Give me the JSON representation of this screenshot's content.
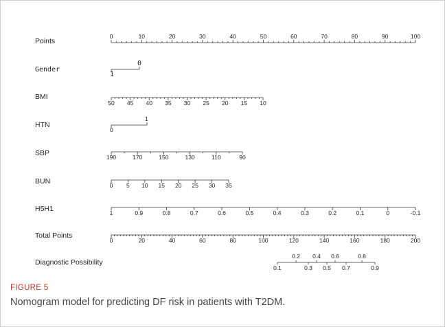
{
  "figure": {
    "label": "FIGURE 5",
    "caption": "Nomogram model for predicting DF risk in patients with T2DM."
  },
  "chart_data": {
    "type": "nomogram",
    "rows": [
      {
        "name": "Points",
        "ticks": [
          "0",
          "10",
          "20",
          "30",
          "40",
          "50",
          "60",
          "70",
          "80",
          "90",
          "100"
        ],
        "values": [
          0,
          10,
          20,
          30,
          40,
          50,
          60,
          70,
          80,
          90,
          100
        ]
      },
      {
        "name": "Gender",
        "ticks": [
          "1",
          "0"
        ],
        "values": [
          1,
          0
        ]
      },
      {
        "name": "BMI",
        "ticks": [
          "50",
          "45",
          "40",
          "35",
          "30",
          "25",
          "20",
          "15",
          "10"
        ],
        "values": [
          50,
          45,
          40,
          35,
          30,
          25,
          20,
          15,
          10
        ]
      },
      {
        "name": "HTN",
        "ticks": [
          "0",
          "1"
        ],
        "values": [
          0,
          1
        ]
      },
      {
        "name": "SBP",
        "ticks": [
          "190",
          "170",
          "150",
          "130",
          "110",
          "90"
        ],
        "values": [
          190,
          170,
          150,
          130,
          110,
          90
        ]
      },
      {
        "name": "BUN",
        "ticks": [
          "0",
          "5",
          "10",
          "15",
          "20",
          "25",
          "30",
          "35"
        ],
        "values": [
          0,
          5,
          10,
          15,
          20,
          25,
          30,
          35
        ]
      },
      {
        "name": "H5H1",
        "ticks": [
          "1",
          "0.9",
          "0.8",
          "0.7",
          "0.6",
          "0.5",
          "0.4",
          "0.3",
          "0.2",
          "0.1",
          "0",
          "-0.1"
        ],
        "values": [
          1,
          0.9,
          0.8,
          0.7,
          0.6,
          0.5,
          0.4,
          0.3,
          0.2,
          0.1,
          0,
          -0.1
        ]
      },
      {
        "name": "Total Points",
        "ticks": [
          "0",
          "20",
          "40",
          "60",
          "80",
          "100",
          "120",
          "140",
          "160",
          "180",
          "200"
        ],
        "values": [
          0,
          20,
          40,
          60,
          80,
          100,
          120,
          140,
          160,
          180,
          200
        ]
      },
      {
        "name": "Diagnostic Possibility",
        "ticks": [
          "0.1",
          "0.2",
          "0.3",
          "0.4",
          "0.5",
          "0.6",
          "0.7",
          "0.8",
          "0.9"
        ],
        "values": [
          0.1,
          0.2,
          0.3,
          0.4,
          0.5,
          0.6,
          0.7,
          0.8,
          0.9
        ]
      }
    ]
  }
}
